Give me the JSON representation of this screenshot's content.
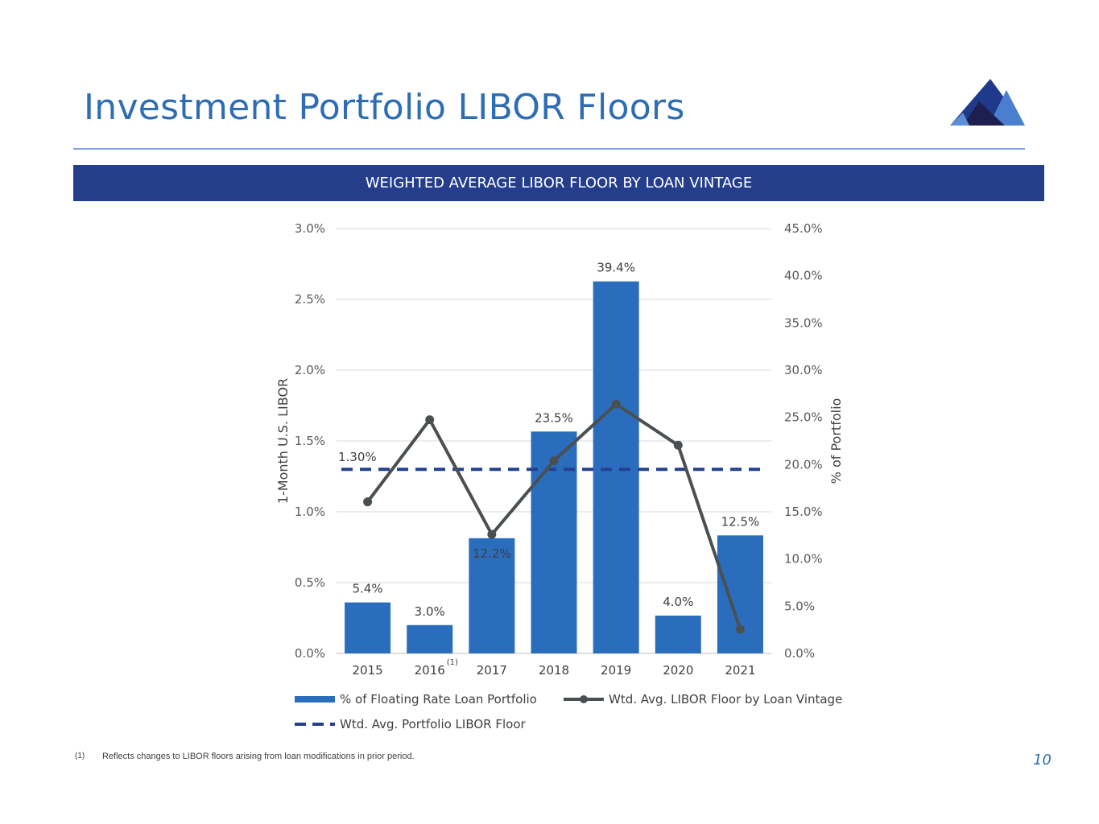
{
  "header": {
    "title": "Investment Portfolio LIBOR Floors"
  },
  "banner": {
    "text": "WEIGHTED AVERAGE LIBOR FLOOR BY LOAN VINTAGE"
  },
  "colors": {
    "title_blue": "#2e6db4",
    "banner_navy": "#243e8c",
    "bar_blue": "#2a6dbd",
    "line_gray": "#4a5052",
    "dash_navy": "#24408f"
  },
  "chart_data": {
    "type": "bar",
    "categories": [
      "2015",
      "2016",
      "2017",
      "2018",
      "2019",
      "2020",
      "2021"
    ],
    "category_superscripts": [
      "",
      "(1)",
      "",
      "",
      "",
      "",
      ""
    ],
    "series": [
      {
        "name": "% of Floating Rate Loan Portfolio",
        "type": "bar",
        "axis": "right",
        "values": [
          5.4,
          3.0,
          12.2,
          23.5,
          39.4,
          4.0,
          12.5
        ],
        "labels": [
          "5.4%",
          "3.0%",
          "12.2%",
          "23.5%",
          "39.4%",
          "4.0%",
          "12.5%"
        ]
      },
      {
        "name": "Wtd. Avg. LIBOR Floor by Loan Vintage",
        "type": "line",
        "axis": "left",
        "values": [
          1.07,
          1.65,
          0.84,
          1.36,
          1.76,
          1.47,
          0.17
        ]
      },
      {
        "name": "Wtd. Avg. Portfolio LIBOR Floor",
        "type": "dashed-line",
        "axis": "left",
        "value": 1.3,
        "label": "1.30%"
      }
    ],
    "y_left": {
      "label": "1-Month U.S. LIBOR",
      "min": 0,
      "max": 3.0,
      "step": 0.5,
      "ticks": [
        "0.0%",
        "0.5%",
        "1.0%",
        "1.5%",
        "2.0%",
        "2.5%",
        "3.0%"
      ]
    },
    "y_right": {
      "label": "% of Portfolio",
      "min": 0,
      "max": 45,
      "step": 5,
      "ticks": [
        "0.0%",
        "5.0%",
        "10.0%",
        "15.0%",
        "20.0%",
        "25.0%",
        "30.0%",
        "35.0%",
        "40.0%",
        "45.0%"
      ]
    },
    "grid": true,
    "legend_position": "bottom"
  },
  "footnote": {
    "mark": "(1)",
    "text": "Reflects changes to LIBOR floors arising from loan modifications in prior period."
  },
  "page_number": "10"
}
